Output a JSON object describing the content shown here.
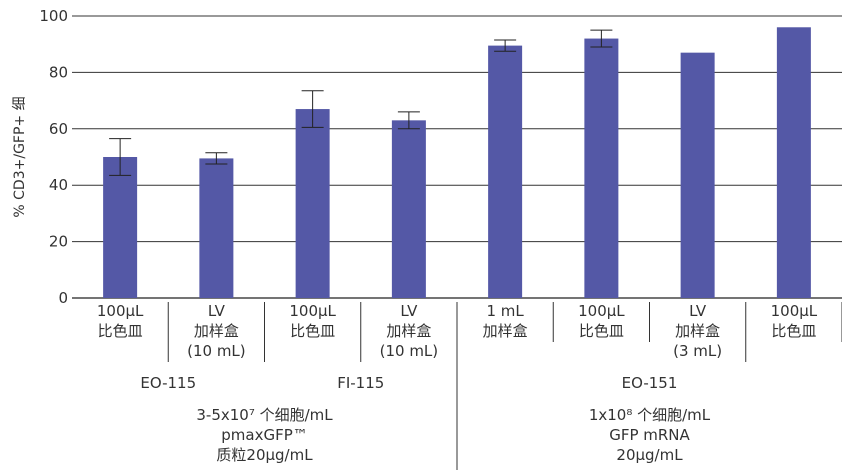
{
  "chart_data": {
    "type": "bar",
    "ylabel": "% CD3+/GFP+ 细",
    "ylim": [
      0,
      100
    ],
    "yticks": [
      0,
      20,
      40,
      60,
      80,
      100
    ],
    "grid": true,
    "bar_color": "#5458a6",
    "categories": [
      [
        "100µL",
        "比色皿"
      ],
      [
        "LV",
        "加样盒",
        "(10 mL)"
      ],
      [
        "100µL",
        "比色皿"
      ],
      [
        "LV",
        "加样盒",
        "(10 mL)"
      ],
      [
        "1 mL",
        "加样盒"
      ],
      [
        "100µL",
        "比色皿"
      ],
      [
        "LV",
        "加样盒",
        "(3 mL)"
      ],
      [
        "100µL",
        "比色皿"
      ]
    ],
    "values": [
      50,
      49.5,
      67,
      63,
      89.5,
      92,
      87,
      96
    ],
    "error": [
      6.5,
      2,
      6.5,
      3,
      2,
      3,
      null,
      null
    ],
    "devices": [
      {
        "label": "EO-115",
        "span": [
          0,
          1
        ]
      },
      {
        "label": "FI-115",
        "span": [
          2,
          3
        ]
      },
      {
        "label": "EO-151",
        "span": [
          4,
          7
        ]
      }
    ],
    "conditions": [
      {
        "lines": [
          "3-5x10⁷ 个细胞/mL",
          "pmaxGFP™",
          "质粒20µg/mL"
        ],
        "span": [
          0,
          3
        ]
      },
      {
        "lines": [
          "1x10⁸ 个细胞/mL",
          "GFP mRNA",
          "20µg/mL"
        ],
        "span": [
          4,
          7
        ]
      }
    ]
  }
}
